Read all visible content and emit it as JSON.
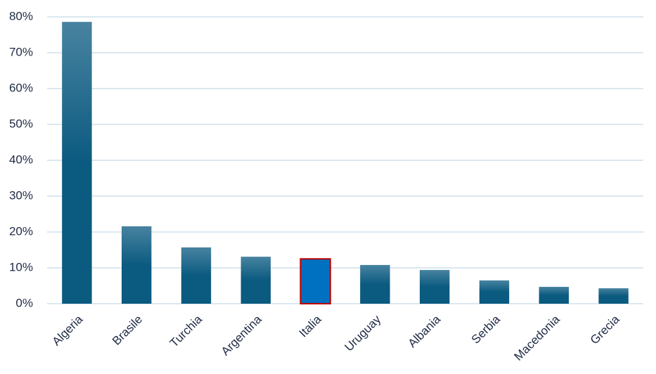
{
  "chart_data": {
    "type": "bar",
    "categories": [
      "Algeria",
      "Brasile",
      "Turchia",
      "Argentina",
      "Italia",
      "Uruguay",
      "Albania",
      "Serbia",
      "Macedonia",
      "Grecia"
    ],
    "values": [
      78.6,
      21.6,
      15.7,
      13.1,
      12.5,
      10.8,
      9.4,
      6.5,
      4.7,
      4.3
    ],
    "colors": [
      "#0b5a80",
      "#0b5a80",
      "#0b5a80",
      "#0b5a80",
      "#0070c0",
      "#0b5a80",
      "#0b5a80",
      "#0b5a80",
      "#0b5a80",
      "#0b5a80"
    ],
    "outline_colors": [
      null,
      null,
      null,
      null,
      "#c00000",
      null,
      null,
      null,
      null,
      null
    ],
    "gradient": true,
    "ylim": [
      0,
      80
    ],
    "yticks": [
      {
        "value": 0,
        "label": "0%"
      },
      {
        "value": 10,
        "label": "10%"
      },
      {
        "value": 20,
        "label": "20%"
      },
      {
        "value": 30,
        "label": "30%"
      },
      {
        "value": 40,
        "label": "40%"
      },
      {
        "value": 50,
        "label": "50%"
      },
      {
        "value": 60,
        "label": "60%"
      },
      {
        "value": 70,
        "label": "70%"
      },
      {
        "value": 80,
        "label": "80%"
      }
    ],
    "grid": true
  }
}
